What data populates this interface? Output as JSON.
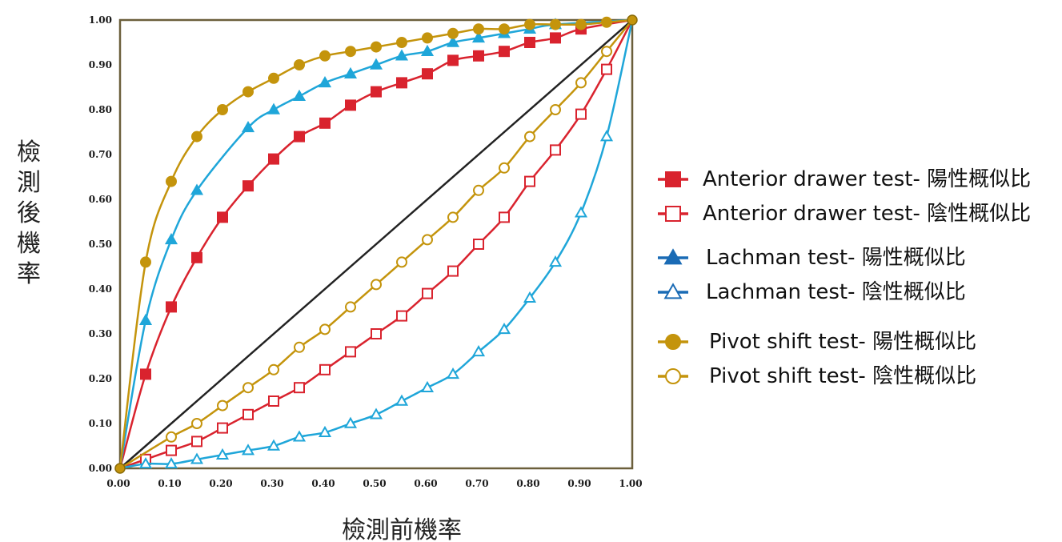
{
  "chart_data": {
    "type": "line",
    "title": "",
    "xlabel": "檢測前機率",
    "ylabel": "檢測後機率",
    "xlim": [
      0,
      1
    ],
    "ylim": [
      0,
      1
    ],
    "xticks": [
      "0.00",
      "0.10",
      "0.20",
      "0.30",
      "0.40",
      "0.50",
      "0.60",
      "0.70",
      "0.80",
      "0.90",
      "1.00"
    ],
    "yticks": [
      "0.00",
      "0.10",
      "0.20",
      "0.30",
      "0.40",
      "0.50",
      "0.60",
      "0.70",
      "0.80",
      "0.90",
      "1.00"
    ],
    "grid": false,
    "legend_position": "right",
    "x": [
      0,
      0.05,
      0.1,
      0.15,
      0.2,
      0.25,
      0.3,
      0.35,
      0.4,
      0.45,
      0.5,
      0.55,
      0.6,
      0.65,
      0.7,
      0.75,
      0.8,
      0.85,
      0.9,
      0.95,
      1.0
    ],
    "series": [
      {
        "name": "Anterior drawer test- 陽性概似比",
        "color": "#d9232e",
        "marker": "square",
        "filled": true,
        "values": [
          0,
          0.21,
          0.36,
          0.47,
          0.56,
          0.63,
          0.69,
          0.74,
          0.77,
          0.81,
          0.84,
          0.86,
          0.88,
          0.91,
          0.92,
          0.93,
          0.95,
          0.96,
          0.98,
          null,
          1.0
        ]
      },
      {
        "name": "Anterior drawer test- 陰性概似比",
        "color": "#d9232e",
        "marker": "square",
        "filled": false,
        "values": [
          0,
          0.02,
          0.04,
          0.06,
          0.09,
          0.12,
          0.15,
          0.18,
          0.22,
          0.26,
          0.3,
          0.34,
          0.39,
          0.44,
          0.5,
          0.56,
          0.64,
          0.71,
          0.79,
          0.89,
          1.0
        ]
      },
      {
        "name": "Lachman test- 陽性概似比",
        "color": "#1fa6d9",
        "marker": "triangle",
        "filled": true,
        "values": [
          0,
          0.33,
          0.51,
          0.62,
          null,
          0.76,
          0.8,
          0.83,
          0.86,
          0.88,
          0.9,
          0.92,
          0.93,
          0.95,
          0.96,
          0.97,
          0.98,
          0.99,
          null,
          null,
          1.0
        ]
      },
      {
        "name": "Lachman test- 陰性概似比",
        "color": "#1fa6d9",
        "marker": "triangle",
        "filled": false,
        "values": [
          0,
          0.01,
          0.01,
          0.02,
          0.03,
          0.04,
          0.05,
          0.07,
          0.08,
          0.1,
          0.12,
          0.15,
          0.18,
          0.21,
          0.26,
          0.31,
          0.38,
          0.46,
          0.57,
          0.74,
          1.0
        ]
      },
      {
        "name": "Pivot shift test- 陽性概似比",
        "color": "#c4940c",
        "marker": "circle",
        "filled": true,
        "values": [
          0,
          0.46,
          0.64,
          0.74,
          0.8,
          0.84,
          0.87,
          0.9,
          0.92,
          0.93,
          0.94,
          0.95,
          0.96,
          0.97,
          0.98,
          0.98,
          0.99,
          0.99,
          0.99,
          0.995,
          1.0
        ]
      },
      {
        "name": "Pivot shift test- 陰性概似比",
        "color": "#c4940c",
        "marker": "circle",
        "filled": false,
        "values": [
          0,
          null,
          0.07,
          0.1,
          0.14,
          0.18,
          0.22,
          0.27,
          0.31,
          0.36,
          0.41,
          0.46,
          0.51,
          0.56,
          0.62,
          0.67,
          0.74,
          0.8,
          0.86,
          0.93,
          1.0
        ]
      }
    ],
    "reference_line": {
      "from": [
        0,
        0
      ],
      "to": [
        1,
        1
      ],
      "color": "#222222"
    }
  },
  "colors": {
    "frame": "#6b5f3b",
    "red": "#d9232e",
    "blue": "#1fa6d9",
    "legend_blue": "#1a6bb5",
    "gold": "#c4940c"
  },
  "legend": {
    "items": [
      {
        "text": "Anterior drawer test- 陽性概似比"
      },
      {
        "text": "Anterior drawer test- 陰性概似比"
      },
      {
        "text": "Lachman test- 陽性概似比"
      },
      {
        "text": "Lachman test- 陰性概似比"
      },
      {
        "text": "Pivot shift test- 陽性概似比"
      },
      {
        "text": "Pivot shift test- 陰性概似比"
      }
    ]
  }
}
